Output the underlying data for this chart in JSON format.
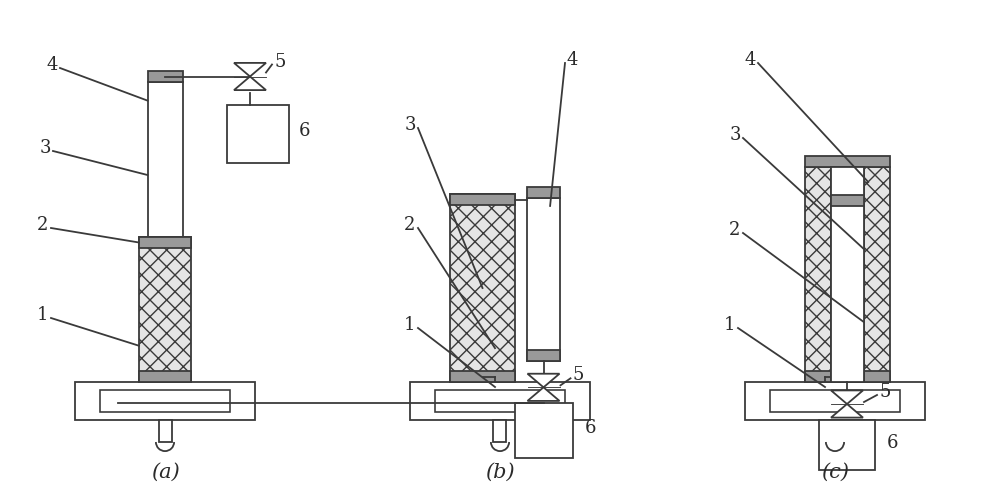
{
  "bg_color": "#ffffff",
  "line_color": "#3a3a3a",
  "label_color": "#2a2a2a",
  "diagrams": [
    "a",
    "b",
    "c"
  ],
  "label_fontsize": 15,
  "number_fontsize": 13
}
